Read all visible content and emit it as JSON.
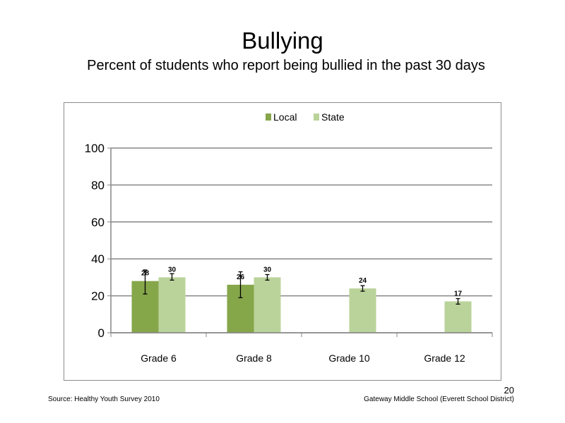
{
  "slide": {
    "title": "Bullying",
    "subtitle": "Percent of students who report being bullied in the past 30 days",
    "source": "Source: Healthy Youth Survey 2010",
    "school": "Gateway Middle  School (Everett School District)",
    "page_number": "20"
  },
  "chart_data": {
    "type": "bar",
    "categories": [
      "Grade 6",
      "Grade 8",
      "Grade 10",
      "Grade 12"
    ],
    "series": [
      {
        "name": "Local",
        "color": "#86a64a",
        "values": [
          28,
          26,
          null,
          null
        ],
        "labels": [
          "28",
          "26",
          null,
          null
        ],
        "error_ranges": [
          [
            21,
            34
          ],
          [
            19,
            33
          ],
          null,
          null
        ]
      },
      {
        "name": "State",
        "color": "#bad39a",
        "values": [
          30,
          30,
          24,
          17
        ],
        "labels": [
          "30",
          "30",
          "24",
          "17"
        ],
        "error_ranges": [
          [
            28.5,
            32
          ],
          [
            28.5,
            31.5
          ],
          [
            22.5,
            25.5
          ],
          [
            15.5,
            18.5
          ]
        ]
      }
    ],
    "title": "",
    "xlabel": "",
    "ylabel": "",
    "ylim": [
      0,
      100
    ],
    "yticks": [
      0,
      20,
      40,
      60,
      80,
      100
    ],
    "grid": true,
    "legend": "top-center"
  }
}
